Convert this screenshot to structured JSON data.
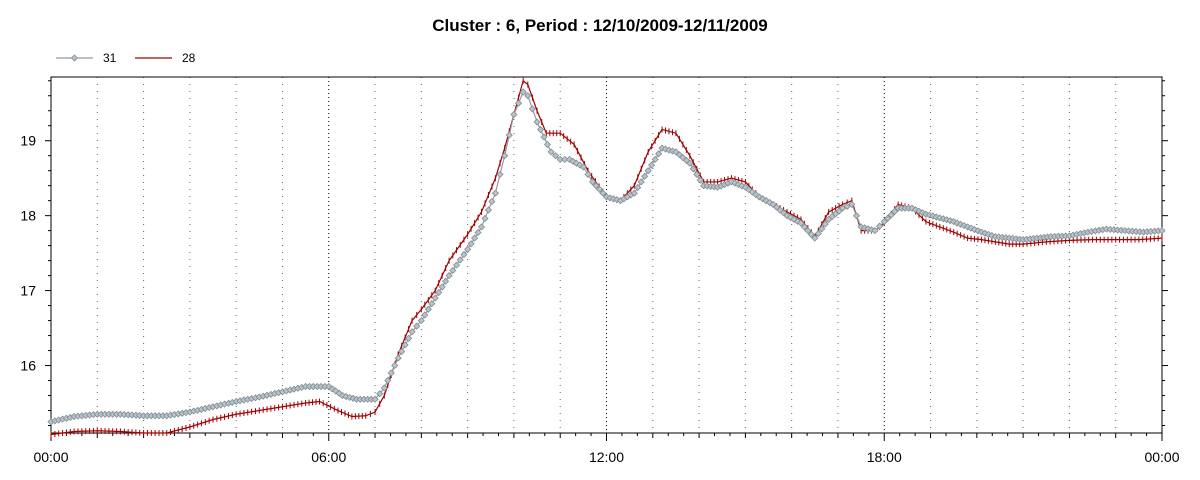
{
  "chart_data": {
    "type": "line",
    "title": "Cluster : 6, Period : 12/10/2009-12/11/2009",
    "xlabel": "",
    "ylabel": "",
    "x_ticks": [
      "00:00",
      "06:00",
      "12:00",
      "18:00",
      "00:00"
    ],
    "x_range_hours": [
      0,
      24
    ],
    "ylim": [
      15.1,
      19.85
    ],
    "y_ticks": [
      16,
      17,
      18,
      19
    ],
    "grid": {
      "vertical": true,
      "horizontal": false
    },
    "legend": {
      "position": "top-left"
    },
    "series": [
      {
        "name": "31",
        "color": "#909ca4",
        "marker": "diamond",
        "points": [
          [
            0.0,
            15.25
          ],
          [
            0.5,
            15.32
          ],
          [
            1.0,
            15.35
          ],
          [
            1.5,
            15.35
          ],
          [
            2.0,
            15.33
          ],
          [
            2.5,
            15.33
          ],
          [
            3.0,
            15.38
          ],
          [
            3.5,
            15.45
          ],
          [
            4.0,
            15.52
          ],
          [
            4.5,
            15.58
          ],
          [
            5.0,
            15.65
          ],
          [
            5.5,
            15.72
          ],
          [
            6.0,
            15.72
          ],
          [
            6.3,
            15.6
          ],
          [
            6.6,
            15.55
          ],
          [
            7.0,
            15.55
          ],
          [
            7.2,
            15.7
          ],
          [
            7.5,
            16.1
          ],
          [
            7.8,
            16.45
          ],
          [
            8.0,
            16.6
          ],
          [
            8.3,
            16.9
          ],
          [
            8.6,
            17.2
          ],
          [
            9.0,
            17.55
          ],
          [
            9.3,
            17.85
          ],
          [
            9.6,
            18.3
          ],
          [
            9.8,
            18.8
          ],
          [
            10.0,
            19.35
          ],
          [
            10.2,
            19.65
          ],
          [
            10.3,
            19.6
          ],
          [
            10.5,
            19.25
          ],
          [
            10.8,
            18.85
          ],
          [
            11.0,
            18.75
          ],
          [
            11.2,
            18.75
          ],
          [
            11.5,
            18.65
          ],
          [
            11.7,
            18.45
          ],
          [
            12.0,
            18.25
          ],
          [
            12.3,
            18.2
          ],
          [
            12.6,
            18.3
          ],
          [
            12.9,
            18.6
          ],
          [
            13.2,
            18.9
          ],
          [
            13.5,
            18.85
          ],
          [
            13.8,
            18.7
          ],
          [
            14.1,
            18.4
          ],
          [
            14.4,
            18.38
          ],
          [
            14.7,
            18.45
          ],
          [
            15.0,
            18.38
          ],
          [
            15.3,
            18.25
          ],
          [
            15.6,
            18.15
          ],
          [
            15.9,
            18.0
          ],
          [
            16.2,
            17.9
          ],
          [
            16.5,
            17.7
          ],
          [
            16.8,
            17.95
          ],
          [
            17.1,
            18.1
          ],
          [
            17.3,
            18.15
          ],
          [
            17.5,
            17.85
          ],
          [
            17.8,
            17.8
          ],
          [
            18.0,
            17.92
          ],
          [
            18.3,
            18.1
          ],
          [
            18.6,
            18.1
          ],
          [
            18.9,
            18.02
          ],
          [
            19.2,
            17.97
          ],
          [
            19.5,
            17.92
          ],
          [
            19.8,
            17.85
          ],
          [
            20.1,
            17.78
          ],
          [
            20.4,
            17.72
          ],
          [
            20.7,
            17.7
          ],
          [
            21.0,
            17.68
          ],
          [
            21.3,
            17.7
          ],
          [
            21.6,
            17.72
          ],
          [
            22.0,
            17.73
          ],
          [
            22.4,
            17.78
          ],
          [
            22.8,
            17.82
          ],
          [
            23.2,
            17.8
          ],
          [
            23.6,
            17.78
          ],
          [
            24.0,
            17.8
          ]
        ]
      },
      {
        "name": "28",
        "color": "#a00000",
        "marker": "tick",
        "points": [
          [
            0.0,
            15.08
          ],
          [
            0.5,
            15.12
          ],
          [
            1.0,
            15.13
          ],
          [
            1.5,
            15.12
          ],
          [
            2.0,
            15.1
          ],
          [
            2.5,
            15.1
          ],
          [
            3.0,
            15.18
          ],
          [
            3.5,
            15.28
          ],
          [
            4.0,
            15.35
          ],
          [
            4.5,
            15.4
          ],
          [
            5.0,
            15.45
          ],
          [
            5.5,
            15.5
          ],
          [
            5.8,
            15.52
          ],
          [
            6.2,
            15.4
          ],
          [
            6.5,
            15.32
          ],
          [
            6.8,
            15.33
          ],
          [
            7.0,
            15.38
          ],
          [
            7.2,
            15.6
          ],
          [
            7.5,
            16.15
          ],
          [
            7.8,
            16.6
          ],
          [
            8.0,
            16.75
          ],
          [
            8.3,
            17.0
          ],
          [
            8.6,
            17.4
          ],
          [
            9.0,
            17.75
          ],
          [
            9.3,
            18.05
          ],
          [
            9.6,
            18.5
          ],
          [
            9.8,
            18.9
          ],
          [
            10.0,
            19.35
          ],
          [
            10.2,
            19.8
          ],
          [
            10.3,
            19.75
          ],
          [
            10.5,
            19.4
          ],
          [
            10.7,
            19.1
          ],
          [
            11.0,
            19.1
          ],
          [
            11.3,
            18.95
          ],
          [
            11.6,
            18.6
          ],
          [
            12.0,
            18.25
          ],
          [
            12.3,
            18.2
          ],
          [
            12.6,
            18.4
          ],
          [
            12.9,
            18.85
          ],
          [
            13.2,
            19.15
          ],
          [
            13.5,
            19.1
          ],
          [
            13.8,
            18.8
          ],
          [
            14.1,
            18.45
          ],
          [
            14.4,
            18.45
          ],
          [
            14.7,
            18.5
          ],
          [
            15.0,
            18.45
          ],
          [
            15.3,
            18.25
          ],
          [
            15.6,
            18.15
          ],
          [
            15.9,
            18.05
          ],
          [
            16.2,
            17.95
          ],
          [
            16.5,
            17.72
          ],
          [
            16.8,
            18.05
          ],
          [
            17.1,
            18.15
          ],
          [
            17.3,
            18.2
          ],
          [
            17.5,
            17.8
          ],
          [
            17.8,
            17.8
          ],
          [
            18.0,
            17.9
          ],
          [
            18.3,
            18.15
          ],
          [
            18.6,
            18.1
          ],
          [
            18.9,
            17.92
          ],
          [
            19.2,
            17.85
          ],
          [
            19.5,
            17.78
          ],
          [
            19.8,
            17.7
          ],
          [
            20.1,
            17.68
          ],
          [
            20.4,
            17.65
          ],
          [
            20.7,
            17.62
          ],
          [
            21.0,
            17.62
          ],
          [
            21.5,
            17.65
          ],
          [
            22.0,
            17.67
          ],
          [
            22.5,
            17.68
          ],
          [
            23.0,
            17.68
          ],
          [
            23.5,
            17.68
          ],
          [
            24.0,
            17.7
          ]
        ]
      }
    ]
  }
}
